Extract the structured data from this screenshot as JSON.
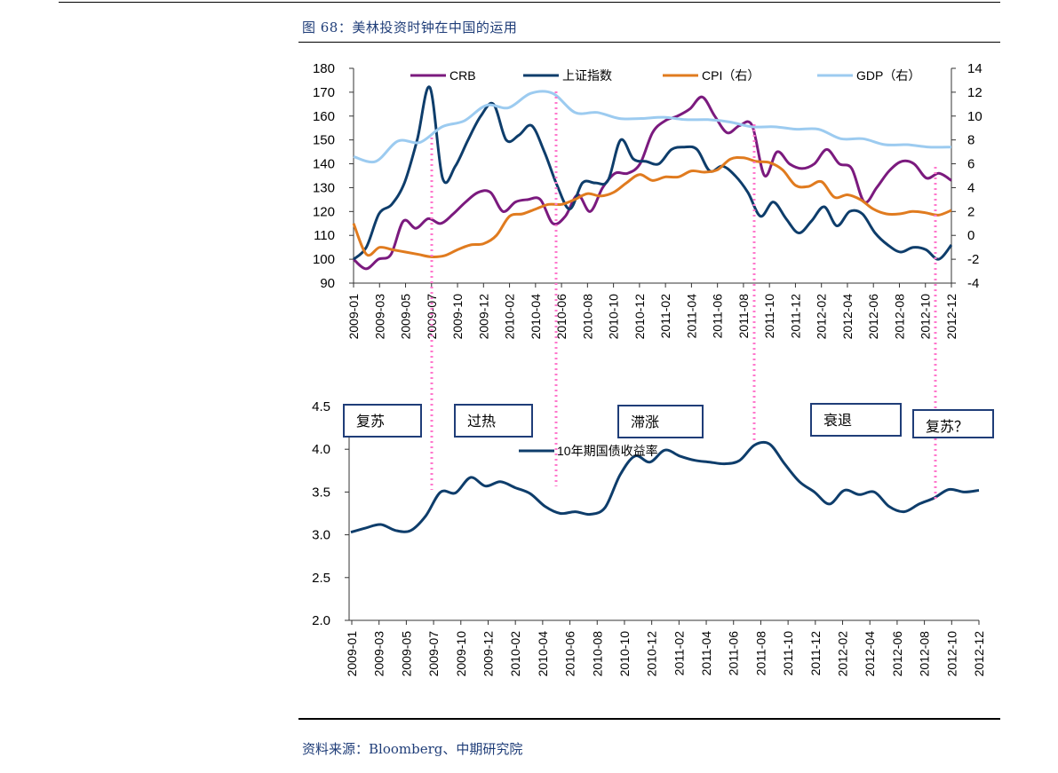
{
  "figure_title": "图 68：美林投资时钟在中国的运用",
  "source_note": "资料来源：Bloomberg、中期研究院",
  "colors": {
    "crb": "#7b1a7e",
    "sh": "#0e3d6b",
    "cpi": "#e07b1f",
    "gdp": "#9ccbf0",
    "bond": "#0e3d6b",
    "phase_border": "#1f3d78",
    "divider": "#ff77cc"
  },
  "chart_data": [
    {
      "type": "line",
      "x_labels": [
        "2009-01",
        "2009-03",
        "2009-05",
        "2009-07",
        "2009-10",
        "2009-12",
        "2010-02",
        "2010-04",
        "2010-06",
        "2010-08",
        "2010-10",
        "2010-12",
        "2011-02",
        "2011-04",
        "2011-06",
        "2011-08",
        "2011-10",
        "2011-12",
        "2012-02",
        "2012-04",
        "2012-06",
        "2012-08",
        "2012-10",
        "2012-12"
      ],
      "ylim_left": [
        90,
        180
      ],
      "yticks_left": [
        "180",
        "170",
        "160",
        "150",
        "140",
        "130",
        "120",
        "110",
        "100",
        "90"
      ],
      "ylim_right": [
        -4,
        14
      ],
      "yticks_right": [
        "14",
        "12",
        "10",
        "8",
        "6",
        "4",
        "2",
        "0",
        "-2",
        "-4"
      ],
      "legend": [
        "CRB",
        "上证指数",
        "CPI（右）",
        "GDP（右）"
      ],
      "series": [
        {
          "name": "CRB",
          "axis": "left",
          "values": [
            100,
            96,
            100,
            102,
            116,
            113,
            117,
            115,
            119,
            124,
            128,
            128,
            120,
            124,
            125,
            125,
            115,
            118,
            127,
            120,
            130,
            136,
            136,
            140,
            153,
            158,
            160,
            163,
            168,
            160,
            153,
            156,
            156,
            135,
            145,
            140,
            138,
            140,
            146,
            140,
            138,
            124,
            130,
            137,
            141,
            140,
            134,
            136,
            133
          ]
        },
        {
          "name": "上证指数",
          "axis": "left",
          "values": [
            100,
            105,
            119,
            123,
            132,
            150,
            172,
            134,
            139,
            150,
            160,
            165,
            150,
            152,
            156,
            145,
            131,
            121,
            132,
            132,
            133,
            150,
            142,
            141,
            140,
            146,
            147,
            146,
            137,
            139,
            135,
            128,
            118,
            124,
            117,
            111,
            116,
            122,
            114,
            120,
            119,
            111,
            106,
            103,
            105,
            104,
            100,
            106
          ]
        },
        {
          "name": "CPI（右）",
          "axis": "right",
          "values": [
            1,
            -1.6,
            -1,
            -1.2,
            -1.4,
            -1.6,
            -1.8,
            -1.7,
            -1.2,
            -0.8,
            -0.7,
            0,
            1.6,
            1.8,
            2.2,
            2.6,
            2.6,
            3,
            3.5,
            3.3,
            3.6,
            4.4,
            5.1,
            4.6,
            4.9,
            4.9,
            5.4,
            5.3,
            5.5,
            6.4,
            6.5,
            6.2,
            6.1,
            5.5,
            4.2,
            4.1,
            4.5,
            3.2,
            3.4,
            3,
            2.2,
            1.8,
            1.8,
            2,
            1.9,
            1.7,
            2.1
          ]
        },
        {
          "name": "GDP（右）",
          "axis": "right",
          "values": [
            6.6,
            6.2,
            7.9,
            7.8,
            9.1,
            9.6,
            10.9,
            10.7,
            11.9,
            11.9,
            10.3,
            10.3,
            9.8,
            9.8,
            9.9,
            9.7,
            9.7,
            9.5,
            9.1,
            9.1,
            8.9,
            8.9,
            8.1,
            8.1,
            7.6,
            7.6,
            7.4,
            7.4
          ]
        }
      ]
    },
    {
      "type": "line",
      "x_labels": [
        "2009-01",
        "2009-03",
        "2009-05",
        "2009-07",
        "2009-10",
        "2009-12",
        "2010-02",
        "2010-04",
        "2010-06",
        "2010-08",
        "2010-10",
        "2010-12",
        "2011-02",
        "2011-04",
        "2011-06",
        "2011-08",
        "2011-10",
        "2011-12",
        "2012-02",
        "2012-04",
        "2012-06",
        "2012-08",
        "2012-10",
        "2012-12"
      ],
      "ylim": [
        2.0,
        4.5
      ],
      "yticks": [
        "4.5",
        "4.0",
        "3.5",
        "3.0",
        "2.5",
        "2.0"
      ],
      "legend": [
        "10年期国债收益率"
      ],
      "series": [
        {
          "name": "10年期国债收益率",
          "values": [
            3.03,
            3.08,
            3.12,
            3.05,
            3.05,
            3.22,
            3.5,
            3.49,
            3.67,
            3.57,
            3.62,
            3.55,
            3.48,
            3.33,
            3.25,
            3.27,
            3.24,
            3.32,
            3.7,
            3.92,
            3.85,
            3.99,
            3.92,
            3.87,
            3.85,
            3.83,
            3.87,
            4.05,
            4.06,
            3.83,
            3.62,
            3.5,
            3.36,
            3.52,
            3.47,
            3.5,
            3.33,
            3.27,
            3.36,
            3.43,
            3.53,
            3.5,
            3.52
          ]
        }
      ]
    }
  ],
  "phases": [
    "复苏",
    "过热",
    "滞涨",
    "衰退",
    "复苏？"
  ]
}
